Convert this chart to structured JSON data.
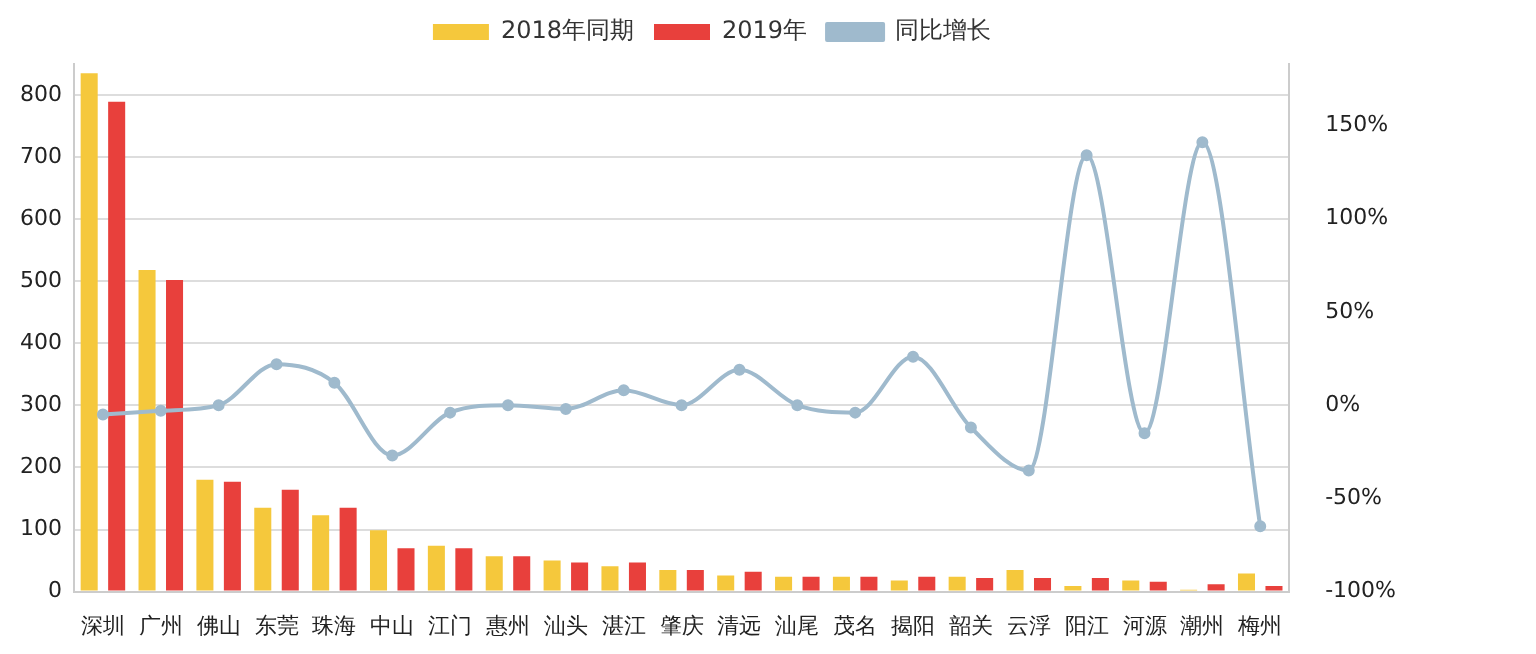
{
  "chart_data": {
    "type": "bar",
    "categories": [
      "深圳",
      "广州",
      "佛山",
      "东莞",
      "珠海",
      "中山",
      "江门",
      "惠州",
      "汕头",
      "湛江",
      "肇庆",
      "清远",
      "汕尾",
      "茂名",
      "揭阳",
      "韶关",
      "云浮",
      "阳江",
      "河源",
      "潮州",
      "梅州"
    ],
    "series": [
      {
        "name": "2018年同期",
        "color": "#f5c83c",
        "values": [
          835,
          518,
          180,
          135,
          123,
          99,
          74,
          57,
          50,
          41,
          35,
          26,
          24,
          24,
          18,
          24,
          35,
          9,
          18,
          3,
          29
        ]
      },
      {
        "name": "2019年",
        "color": "#e8403c",
        "values": [
          789,
          502,
          177,
          164,
          135,
          70,
          70,
          57,
          47,
          47,
          35,
          32,
          24,
          24,
          24,
          22,
          22,
          22,
          16,
          12,
          9
        ]
      },
      {
        "name": "同比增长",
        "type": "line",
        "axis": "y2",
        "color": "#9fbacd",
        "values": [
          -5,
          -3,
          0,
          22,
          12,
          -27,
          -4,
          0,
          -2,
          8,
          0,
          19,
          0,
          -4,
          26,
          -12,
          -35,
          134,
          -15,
          141,
          -65
        ]
      }
    ],
    "ylim": [
      0,
      850
    ],
    "yticks": [
      0,
      100,
      200,
      300,
      400,
      500,
      600,
      700,
      800
    ],
    "y2lim": [
      -100,
      183
    ],
    "y2ticks": [
      {
        "value": -100,
        "label": "-100%"
      },
      {
        "value": -50,
        "label": "-50%"
      },
      {
        "value": 0,
        "label": "0%"
      },
      {
        "value": 50,
        "label": "50%"
      },
      {
        "value": 100,
        "label": "100%"
      },
      {
        "value": 150,
        "label": "150%"
      }
    ],
    "grid": "y",
    "legend": "top",
    "marker": "circle",
    "line_style": "solid"
  }
}
